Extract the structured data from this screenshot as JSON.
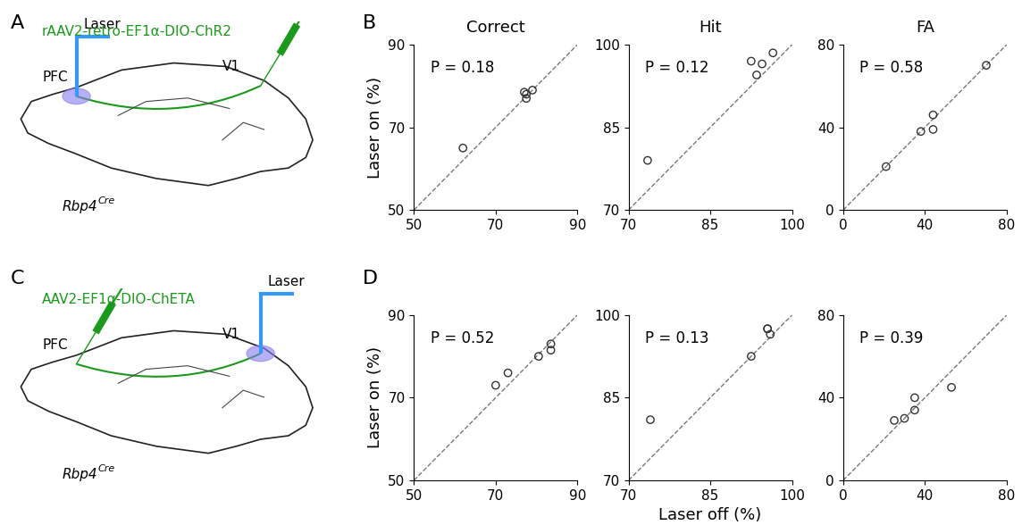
{
  "panel_letters": [
    "A",
    "B",
    "C",
    "D"
  ],
  "schematics": [
    {
      "virus": "rAAV2-retro-EF1α-DIO-ChR2",
      "laser": "Laser",
      "regions": [
        "PFC",
        "V1"
      ],
      "injection_region": 1,
      "laser_region": 0,
      "mouse_line": "Rbp4",
      "mouse_line_superscript": "Cre",
      "color": "#1a9a1a"
    },
    {
      "virus": "AAV2-EF1α-DIO-ChETA",
      "laser": "Laser",
      "regions": [
        "PFC",
        "V1"
      ],
      "injection_region": 0,
      "laser_region": 1,
      "mouse_line": "Rbp4",
      "mouse_line_superscript": "Cre",
      "color": "#1a9a1a"
    }
  ],
  "chart_data": [
    {
      "type": "scatter",
      "title": "Correct",
      "annotation": "P = 0.18",
      "ylabel": "Laser on (%)",
      "x": [
        62,
        77,
        77.5,
        77.5,
        79
      ],
      "values": [
        65,
        78.5,
        78,
        77,
        79
      ],
      "xlim": [
        50,
        90
      ],
      "ylim": [
        50,
        90
      ],
      "xticks": [
        50,
        70,
        90
      ],
      "yticks": [
        50,
        70,
        90
      ],
      "color": "#333333",
      "marker": "o"
    },
    {
      "type": "scatter",
      "title": "Hit",
      "annotation": "P = 0.12",
      "x": [
        73.5,
        92.5,
        93.5,
        94.5,
        96.5
      ],
      "values": [
        79,
        97,
        94.5,
        96.5,
        98.5
      ],
      "xlim": [
        70,
        100
      ],
      "ylim": [
        70,
        100
      ],
      "xticks": [
        70,
        85,
        100
      ],
      "yticks": [
        70,
        85,
        100
      ],
      "color": "#333333",
      "marker": "o"
    },
    {
      "type": "scatter",
      "title": "FA",
      "annotation": "P = 0.58",
      "x": [
        21,
        38,
        44,
        44,
        70
      ],
      "values": [
        21,
        38,
        46,
        39,
        70
      ],
      "xlim": [
        0,
        80
      ],
      "ylim": [
        0,
        80
      ],
      "xticks": [
        0,
        40,
        80
      ],
      "yticks": [
        0,
        40,
        80
      ],
      "color": "#333333",
      "marker": "o"
    },
    {
      "type": "scatter",
      "annotation": "P = 0.52",
      "ylabel": "Laser on (%)",
      "x": [
        70,
        73,
        80.5,
        83.5,
        83.5
      ],
      "values": [
        73,
        76,
        80,
        81.5,
        83
      ],
      "xlim": [
        50,
        90
      ],
      "ylim": [
        50,
        90
      ],
      "xticks": [
        50,
        70,
        90
      ],
      "yticks": [
        50,
        70,
        90
      ],
      "color": "#333333",
      "marker": "o"
    },
    {
      "type": "scatter",
      "annotation": "P = 0.13",
      "xlabel": "Laser off (%)",
      "x": [
        74,
        92.5,
        95.5,
        95.5,
        96
      ],
      "values": [
        81,
        92.5,
        97.5,
        97.5,
        96.5
      ],
      "xlim": [
        70,
        100
      ],
      "ylim": [
        70,
        100
      ],
      "xticks": [
        70,
        85,
        100
      ],
      "yticks": [
        70,
        85,
        100
      ],
      "color": "#333333",
      "marker": "o"
    },
    {
      "type": "scatter",
      "annotation": "P = 0.39",
      "x": [
        25,
        30,
        35,
        35,
        53
      ],
      "values": [
        29,
        30,
        34,
        40,
        45
      ],
      "xlim": [
        0,
        80
      ],
      "ylim": [
        0,
        80
      ],
      "xticks": [
        0,
        40,
        80
      ],
      "yticks": [
        0,
        40,
        80
      ],
      "color": "#333333",
      "marker": "o"
    }
  ]
}
